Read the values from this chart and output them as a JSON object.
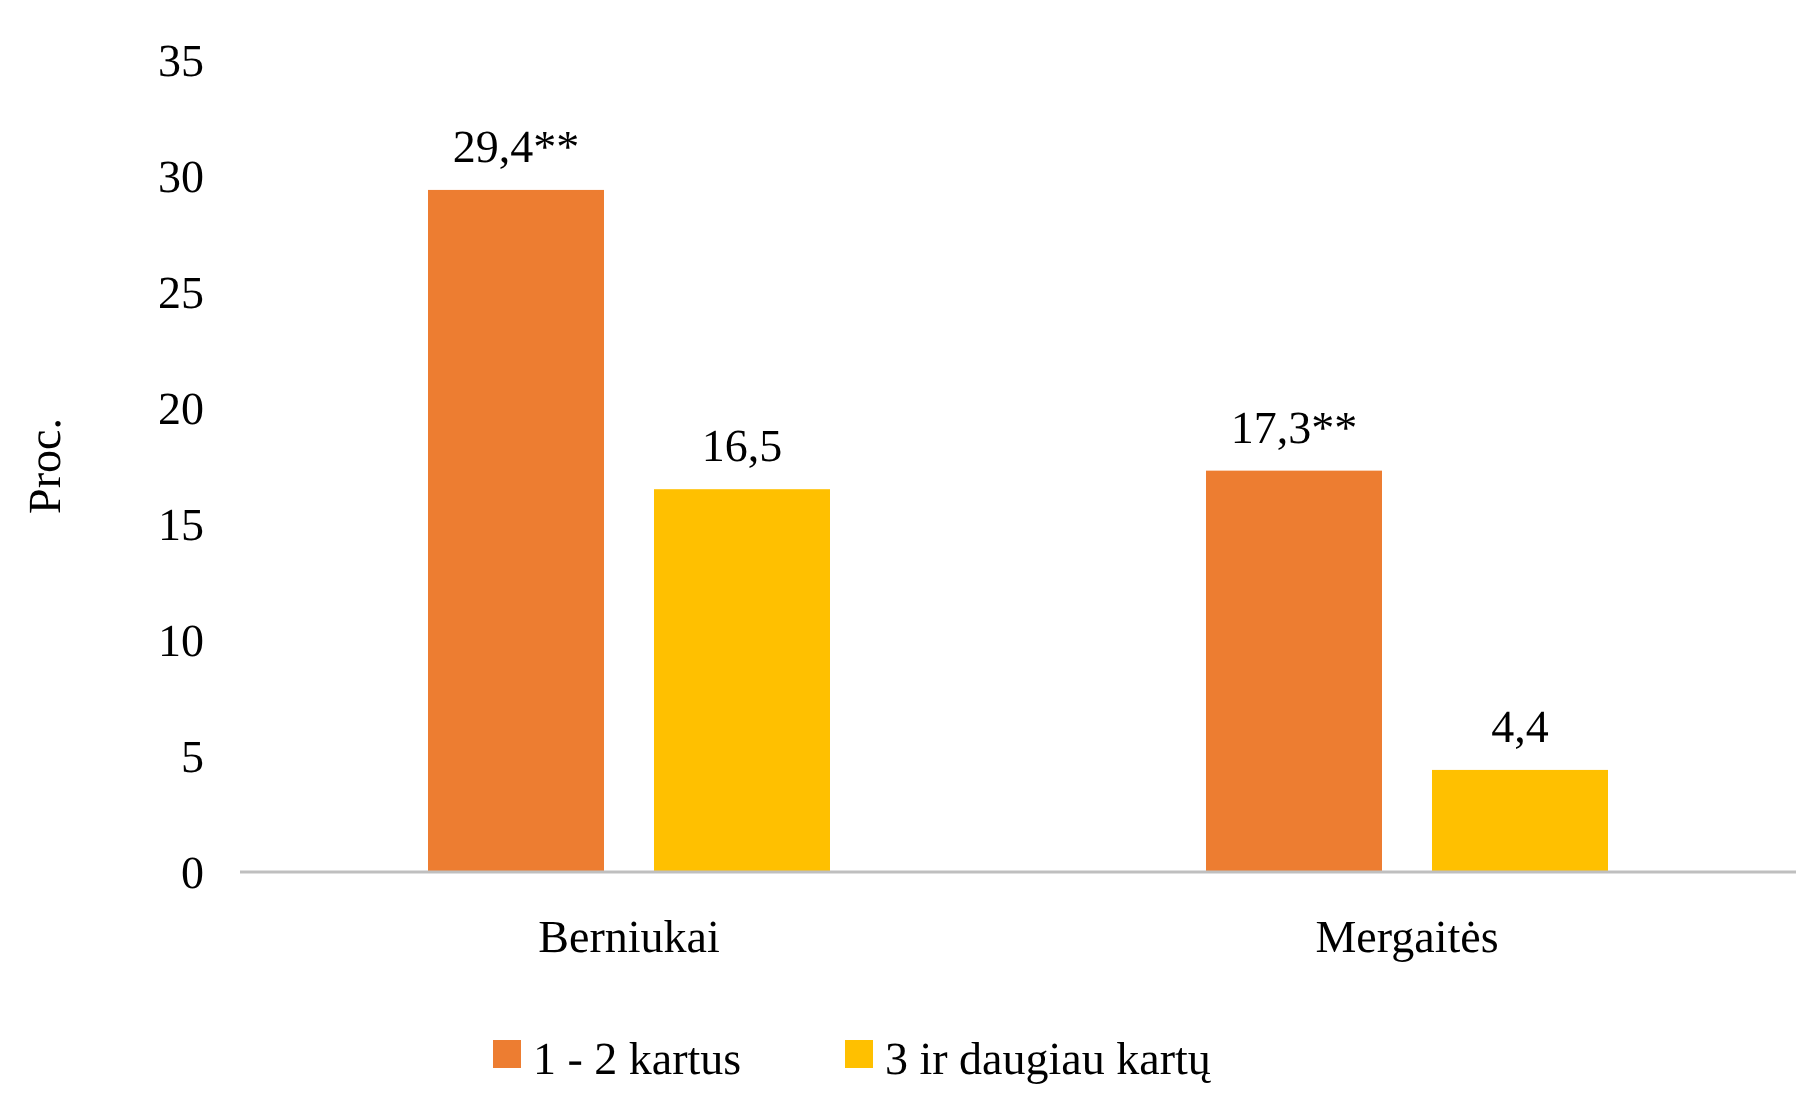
{
  "chart_data": {
    "type": "bar",
    "ylabel": "Proc.",
    "categories": [
      "Berniukai",
      "Mergaitės"
    ],
    "series": [
      {
        "name": "1 - 2 kartus",
        "color": "#ed7d31",
        "values": [
          29.4,
          17.3
        ],
        "value_labels": [
          "29,4**",
          "17,3**"
        ]
      },
      {
        "name": "3 ir daugiau kartų",
        "color": "#ffc000",
        "values": [
          16.5,
          4.4
        ],
        "value_labels": [
          "16,5",
          "4,4"
        ]
      }
    ],
    "ylim": [
      0,
      35
    ],
    "yticks": [
      0,
      5,
      10,
      15,
      20,
      25,
      30,
      35
    ],
    "grid": false,
    "legend": "bottom"
  }
}
